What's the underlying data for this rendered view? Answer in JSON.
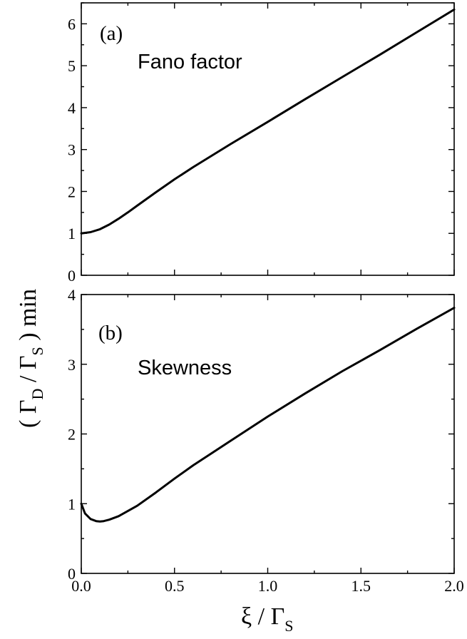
{
  "chart_data": [
    {
      "type": "line",
      "panel_label": "(a)",
      "annotation": "Fano factor",
      "xlim": [
        0.0,
        2.0
      ],
      "ylim": [
        0,
        6.5
      ],
      "y_ticks": [
        "0",
        "1",
        "2",
        "3",
        "4",
        "5",
        "6"
      ],
      "grid": false,
      "series": [
        {
          "x": [
            0.0,
            0.05,
            0.1,
            0.15,
            0.2,
            0.25,
            0.3,
            0.4,
            0.5,
            0.6,
            0.8,
            1.0,
            1.2,
            1.4,
            1.6,
            1.8,
            2.0
          ],
          "values": [
            1.0,
            1.03,
            1.1,
            1.21,
            1.35,
            1.5,
            1.66,
            1.98,
            2.29,
            2.58,
            3.13,
            3.66,
            4.2,
            4.73,
            5.26,
            5.8,
            6.34
          ]
        }
      ]
    },
    {
      "type": "line",
      "panel_label": "(b)",
      "annotation": "Skewness",
      "xlim": [
        0.0,
        2.0
      ],
      "ylim": [
        0,
        4
      ],
      "y_ticks": [
        "0",
        "1",
        "2",
        "3",
        "4"
      ],
      "x_ticks": [
        "0.0",
        "0.5",
        "1.0",
        "1.5",
        "2.0"
      ],
      "grid": false,
      "series": [
        {
          "x": [
            0.0,
            0.02,
            0.05,
            0.08,
            0.1,
            0.12,
            0.15,
            0.2,
            0.3,
            0.4,
            0.5,
            0.6,
            0.8,
            1.0,
            1.2,
            1.4,
            1.6,
            1.8,
            2.0
          ],
          "values": [
            1.0,
            0.86,
            0.78,
            0.75,
            0.745,
            0.75,
            0.77,
            0.82,
            0.97,
            1.16,
            1.36,
            1.55,
            1.9,
            2.25,
            2.58,
            2.9,
            3.2,
            3.51,
            3.81
          ]
        }
      ]
    }
  ],
  "axes": {
    "xlabel_main": "ξ / Γ",
    "xlabel_sub": "S",
    "ylabel_open": "( Γ",
    "ylabel_sub_d": "D",
    "ylabel_mid": " / Γ",
    "ylabel_sub_s": "S",
    "ylabel_close": " ) min"
  }
}
